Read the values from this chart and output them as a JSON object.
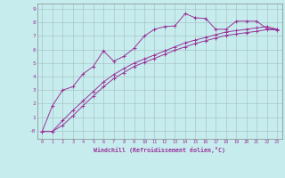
{
  "xlabel": "Windchill (Refroidissement éolien,°C)",
  "bg_color": "#c6ecee",
  "line_color": "#993399",
  "xlim": [
    -0.5,
    23.5
  ],
  "ylim": [
    -0.6,
    9.4
  ],
  "xtick_labels": [
    "0",
    "1",
    "2",
    "3",
    "4",
    "5",
    "6",
    "7",
    "8",
    "9",
    "10",
    "11",
    "12",
    "13",
    "14",
    "15",
    "16",
    "17",
    "18",
    "19",
    "20",
    "21",
    "22",
    "23"
  ],
  "ytick_labels": [
    "-0",
    "1",
    "2",
    "3",
    "4",
    "5",
    "6",
    "7",
    "8",
    "9"
  ],
  "ytick_vals": [
    0,
    1,
    2,
    3,
    4,
    5,
    6,
    7,
    8,
    9
  ],
  "line1_x": [
    0,
    1,
    2,
    3,
    4,
    5,
    6,
    7,
    8,
    9,
    10,
    11,
    12,
    13,
    14,
    15,
    16,
    17,
    18,
    19,
    20,
    21,
    22,
    23
  ],
  "line1_y": [
    -0.05,
    1.85,
    3.0,
    3.25,
    4.2,
    4.75,
    5.9,
    5.15,
    5.5,
    6.1,
    7.0,
    7.5,
    7.7,
    7.75,
    8.65,
    8.35,
    8.3,
    7.5,
    7.5,
    8.1,
    8.1,
    8.1,
    7.55,
    7.5
  ],
  "line2_x": [
    0,
    1,
    2,
    3,
    4,
    5,
    6,
    7,
    8,
    9,
    10,
    11,
    12,
    13,
    14,
    15,
    16,
    17,
    18,
    19,
    20,
    21,
    22,
    23
  ],
  "line2_y": [
    -0.05,
    -0.05,
    0.75,
    1.5,
    2.2,
    2.9,
    3.6,
    4.15,
    4.6,
    5.0,
    5.3,
    5.6,
    5.9,
    6.2,
    6.5,
    6.7,
    6.9,
    7.1,
    7.3,
    7.4,
    7.5,
    7.6,
    7.7,
    7.5
  ],
  "line3_x": [
    0,
    1,
    2,
    3,
    4,
    5,
    6,
    7,
    8,
    9,
    10,
    11,
    12,
    13,
    14,
    15,
    16,
    17,
    18,
    19,
    20,
    21,
    22,
    23
  ],
  "line3_y": [
    -0.05,
    -0.05,
    0.4,
    1.1,
    1.85,
    2.55,
    3.25,
    3.85,
    4.3,
    4.75,
    5.05,
    5.35,
    5.65,
    5.95,
    6.2,
    6.45,
    6.65,
    6.85,
    7.05,
    7.15,
    7.25,
    7.35,
    7.48,
    7.45
  ],
  "grid_color": "#a0b8ba",
  "font_color": "#993399",
  "font_family": "monospace"
}
